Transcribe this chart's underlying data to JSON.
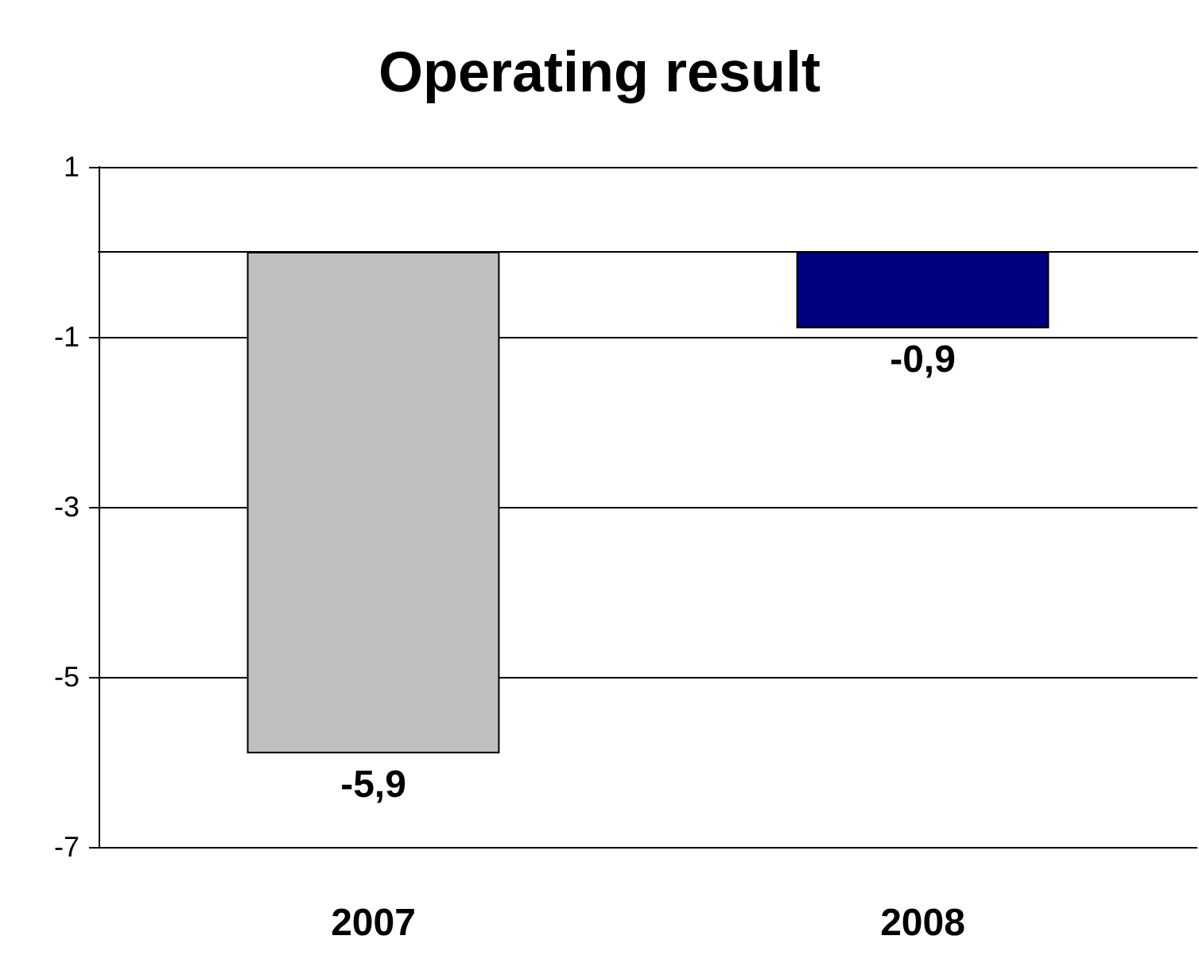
{
  "chart_data": {
    "type": "bar",
    "title": "Operating result",
    "categories": [
      "2007",
      "2008"
    ],
    "values": [
      -5.9,
      -0.9
    ],
    "value_labels": [
      "-5,9",
      "-0,9"
    ],
    "colors": [
      "#c0c0c0",
      "#000080"
    ],
    "ylim": [
      -7,
      1
    ],
    "yticks": [
      -7,
      -5,
      -3,
      -1,
      1
    ],
    "grid": "y"
  }
}
